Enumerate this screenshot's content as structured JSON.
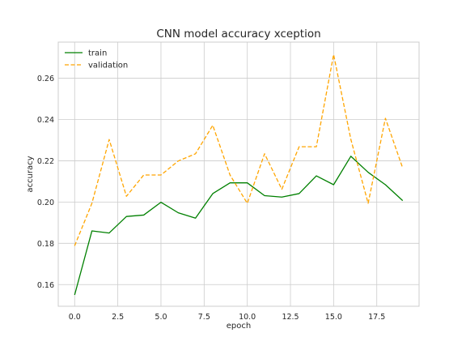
{
  "chart_data": {
    "type": "line",
    "title": "CNN model accuracy xception",
    "xlabel": "epoch",
    "ylabel": "accuracy",
    "xlim": [
      -0.95,
      19.95
    ],
    "ylim": [
      0.1495,
      0.2775
    ],
    "xticks": [
      0,
      2.5,
      5,
      7.5,
      10,
      12.5,
      15,
      17.5
    ],
    "xtick_labels": [
      "0.0",
      "2.5",
      "5.0",
      "7.5",
      "10.0",
      "12.5",
      "15.0",
      "17.5"
    ],
    "yticks": [
      0.16,
      0.18,
      0.2,
      0.22,
      0.24,
      0.26
    ],
    "ytick_labels": [
      "0.16",
      "0.18",
      "0.20",
      "0.22",
      "0.24",
      "0.26"
    ],
    "grid": true,
    "legend_position": "top-left",
    "x": [
      0,
      1,
      2,
      3,
      4,
      5,
      6,
      7,
      8,
      9,
      10,
      11,
      12,
      13,
      14,
      15,
      16,
      17,
      18,
      19
    ],
    "series": [
      {
        "name": "train",
        "color": "#008000",
        "style": "solid",
        "values": [
          0.155,
          0.186,
          0.185,
          0.193,
          0.1937,
          0.1999,
          0.1948,
          0.1922,
          0.2041,
          0.2093,
          0.2093,
          0.2031,
          0.2024,
          0.2041,
          0.2127,
          0.2084,
          0.2222,
          0.2144,
          0.2084,
          0.2007
        ]
      },
      {
        "name": "validation",
        "color": "#ffa500",
        "style": "dashed",
        "values": [
          0.1788,
          0.1994,
          0.2303,
          0.2028,
          0.2131,
          0.2131,
          0.2199,
          0.2234,
          0.2372,
          0.2131,
          0.1994,
          0.2234,
          0.2062,
          0.2268,
          0.2268,
          0.2715,
          0.2303,
          0.1994,
          0.2406,
          0.2165
        ]
      }
    ]
  }
}
